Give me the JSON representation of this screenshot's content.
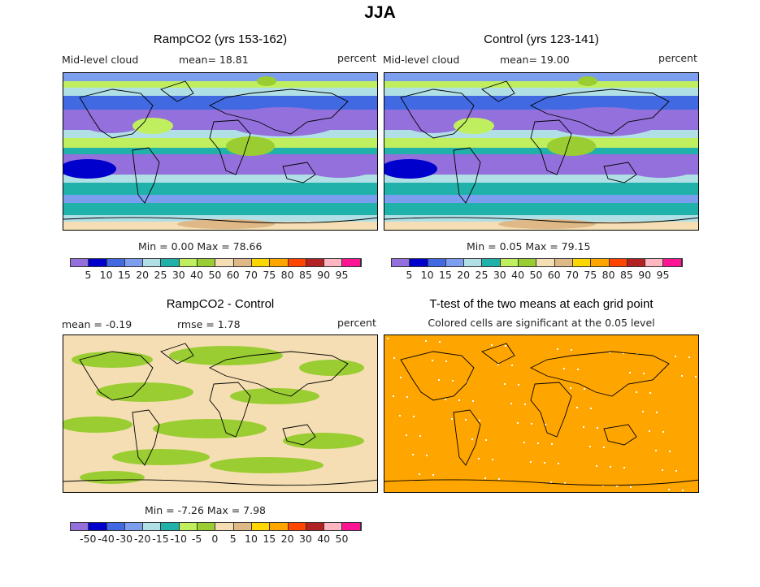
{
  "title": "JJA",
  "palette": [
    "#9370DB",
    "#0000CD",
    "#4169E1",
    "#7B9EEE",
    "#B0E0E6",
    "#20B2AA",
    "#BFEF5F",
    "#9ACD32",
    "#F5DEB3",
    "#DEB887",
    "#FFD700",
    "#FFA500",
    "#FF4500",
    "#B22222",
    "#FFB6C1",
    "#FF1493"
  ],
  "panels": [
    {
      "title": "RampCO2 (yrs 153-162)",
      "left": "Mid-level cloud",
      "mean": "mean=  18.81",
      "units": "percent",
      "minmax": "Min =   0.00 Max =  78.66"
    },
    {
      "title": "Control (yrs 123-141)",
      "left": "Mid-level cloud",
      "mean": "mean=  19.00",
      "units": "percent",
      "minmax": "Min =   0.05 Max =  79.15"
    },
    {
      "title": "RampCO2 - Control",
      "left": "mean =  -0.19",
      "mean": "rmse =   1.78",
      "units": "percent",
      "minmax": "Min =  -7.26 Max =   7.98"
    },
    {
      "title": "T-test of the two means at each grid point",
      "subtitle": "Colored cells are significant at the 0.05 level"
    }
  ],
  "colorbar_levels": [
    "5",
    "10",
    "15",
    "20",
    "25",
    "30",
    "40",
    "50",
    "60",
    "70",
    "75",
    "80",
    "85",
    "90",
    "95"
  ],
  "diff_levels": [
    "-50",
    "-40",
    "-30",
    "-20",
    "-15",
    "-10",
    "-5",
    "0",
    "5",
    "10",
    "15",
    "20",
    "30",
    "40",
    "50"
  ]
}
